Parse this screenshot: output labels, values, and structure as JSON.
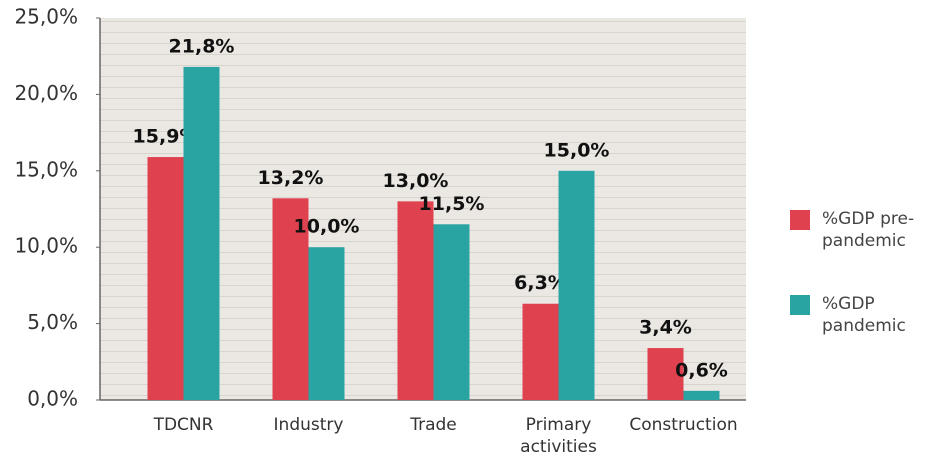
{
  "chart_data": {
    "type": "bar",
    "categories": [
      "TDCNR",
      "Industry",
      "Trade",
      "Primary activities",
      "Construction"
    ],
    "series": [
      {
        "name": "%GDP pre-pandemic",
        "color": "#e0414f",
        "values": [
          15.9,
          13.2,
          13.0,
          6.3,
          3.4
        ],
        "value_labels": [
          "15,9%",
          "13,2%",
          "13,0%",
          "6,3%",
          "3,4%"
        ]
      },
      {
        "name": "%GDP pandemic",
        "color": "#2aa3a3",
        "values": [
          21.8,
          10.0,
          11.5,
          15.0,
          0.6
        ],
        "value_labels": [
          "21,8%",
          "10,0%",
          "11,5%",
          "15,0%",
          "0,6%"
        ]
      }
    ],
    "ylim": [
      0,
      25
    ],
    "yticks": [
      {
        "value": 0,
        "label": "0,0%"
      },
      {
        "value": 5,
        "label": "5,0%"
      },
      {
        "value": 10,
        "label": "10,0%"
      },
      {
        "value": 15,
        "label": "15,0%"
      },
      {
        "value": 20,
        "label": "20,0%"
      },
      {
        "value": 25,
        "label": "25,0%"
      }
    ],
    "legend": "right"
  }
}
